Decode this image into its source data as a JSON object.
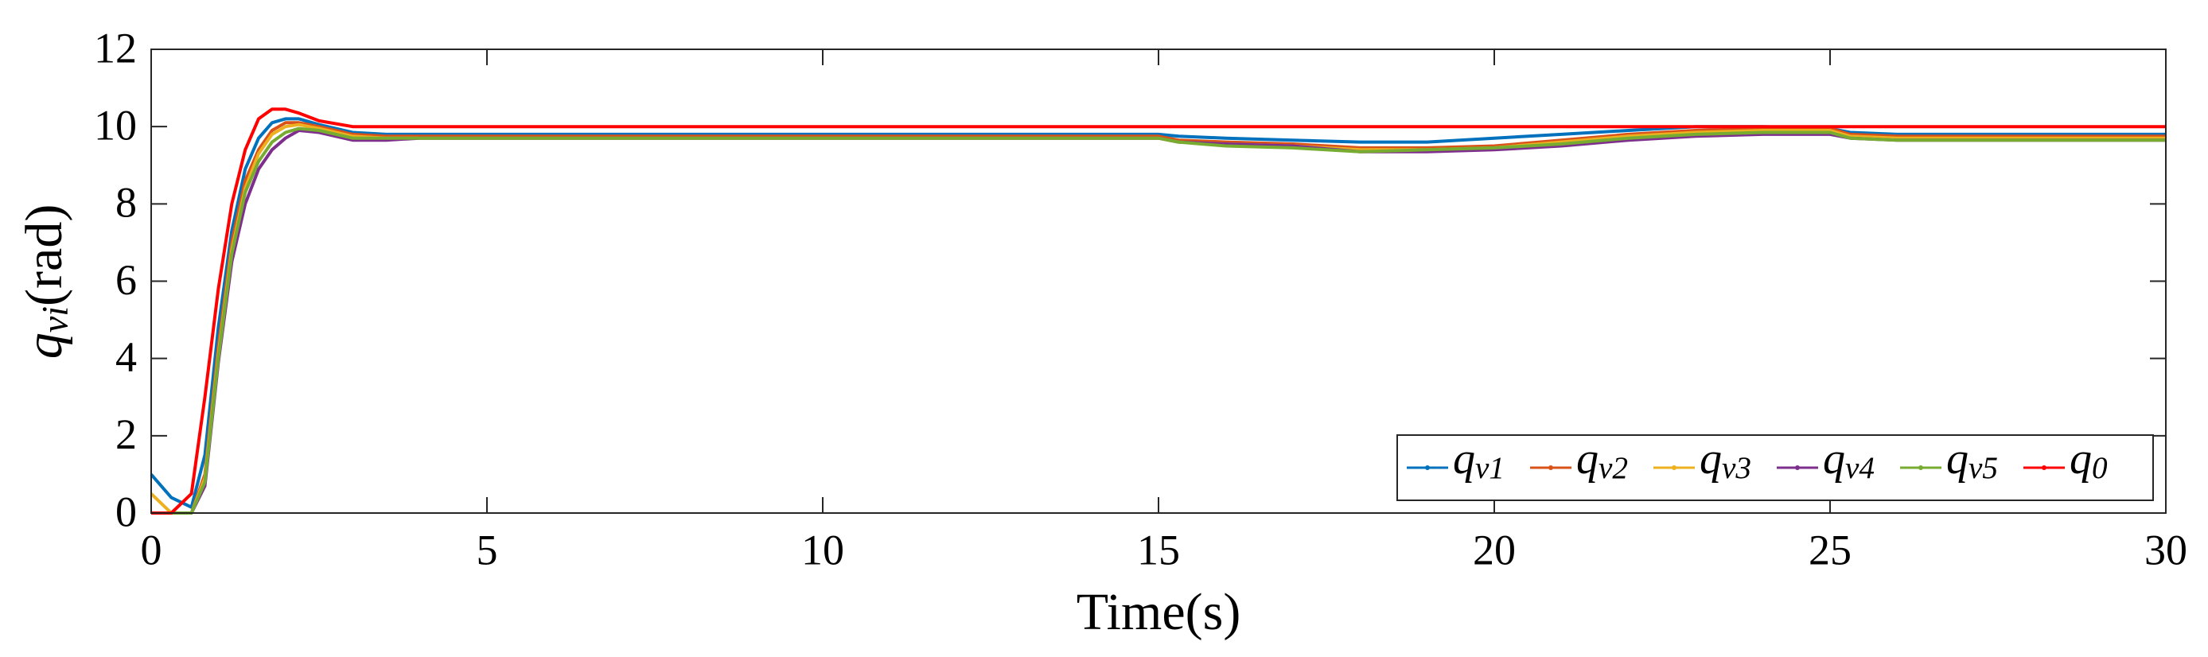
{
  "chart_data": {
    "type": "line",
    "xlabel": "Time(s)",
    "ylabel": "qvi(rad)",
    "x": [
      0,
      0.3,
      0.6,
      0.8,
      1.0,
      1.2,
      1.4,
      1.6,
      1.8,
      2.0,
      2.2,
      2.5,
      3.0,
      3.5,
      4,
      6,
      8,
      10,
      12,
      14,
      15,
      15.3,
      16,
      17,
      18,
      19,
      20,
      21,
      22,
      23,
      24,
      25,
      25.3,
      26,
      28,
      30
    ],
    "series": [
      {
        "name": "qv1",
        "color": "#0072bd",
        "values": [
          1.0,
          0.4,
          0.15,
          1.5,
          4.8,
          7.3,
          8.9,
          9.7,
          10.1,
          10.2,
          10.2,
          10.05,
          9.85,
          9.8,
          9.8,
          9.8,
          9.8,
          9.8,
          9.8,
          9.8,
          9.8,
          9.75,
          9.7,
          9.65,
          9.6,
          9.6,
          9.7,
          9.8,
          9.9,
          10.0,
          10.0,
          9.95,
          9.85,
          9.8,
          9.8,
          9.8
        ]
      },
      {
        "name": "qv2",
        "color": "#d95319",
        "values": [
          0,
          0,
          0,
          1.0,
          4.3,
          7.0,
          8.6,
          9.4,
          9.9,
          10.1,
          10.1,
          10.0,
          9.8,
          9.75,
          9.75,
          9.75,
          9.75,
          9.75,
          9.75,
          9.75,
          9.75,
          9.65,
          9.6,
          9.55,
          9.45,
          9.45,
          9.5,
          9.65,
          9.8,
          9.9,
          9.95,
          9.95,
          9.8,
          9.75,
          9.75,
          9.75
        ]
      },
      {
        "name": "qv3",
        "color": "#edb120",
        "values": [
          0.5,
          0,
          0,
          0.9,
          4.1,
          6.8,
          8.4,
          9.3,
          9.8,
          10.0,
          10.05,
          9.95,
          9.75,
          9.7,
          9.7,
          9.7,
          9.7,
          9.7,
          9.7,
          9.7,
          9.7,
          9.6,
          9.55,
          9.5,
          9.4,
          9.4,
          9.45,
          9.6,
          9.75,
          9.85,
          9.9,
          9.9,
          9.75,
          9.7,
          9.7,
          9.7
        ]
      },
      {
        "name": "qv4",
        "color": "#7e2f8e",
        "values": [
          0,
          0,
          0,
          0.7,
          3.9,
          6.5,
          8.0,
          8.9,
          9.4,
          9.7,
          9.9,
          9.85,
          9.65,
          9.65,
          9.7,
          9.7,
          9.7,
          9.7,
          9.7,
          9.7,
          9.7,
          9.6,
          9.55,
          9.5,
          9.35,
          9.35,
          9.4,
          9.5,
          9.65,
          9.75,
          9.8,
          9.8,
          9.7,
          9.65,
          9.65,
          9.65
        ]
      },
      {
        "name": "qv5",
        "color": "#77ac30",
        "values": [
          0,
          0,
          0,
          0.8,
          4.0,
          6.7,
          8.3,
          9.1,
          9.6,
          9.85,
          9.95,
          9.9,
          9.7,
          9.7,
          9.7,
          9.7,
          9.7,
          9.7,
          9.7,
          9.7,
          9.7,
          9.6,
          9.5,
          9.45,
          9.35,
          9.4,
          9.45,
          9.55,
          9.7,
          9.8,
          9.85,
          9.85,
          9.7,
          9.65,
          9.65,
          9.65
        ]
      },
      {
        "name": "q0",
        "color": "#ff0000",
        "values": [
          0,
          0,
          0.5,
          3.0,
          5.8,
          8.0,
          9.4,
          10.2,
          10.45,
          10.45,
          10.35,
          10.15,
          10.0,
          10,
          10,
          10,
          10,
          10,
          10,
          10,
          10,
          10,
          10,
          10,
          10,
          10,
          10,
          10,
          10,
          10,
          10,
          10,
          10,
          10,
          10,
          10
        ]
      }
    ],
    "xlim": [
      0,
      30
    ],
    "xticks": [
      0,
      5,
      10,
      15,
      20,
      25,
      30
    ],
    "ylim": [
      0,
      12
    ],
    "yticks": [
      0,
      2,
      4,
      6,
      8,
      10,
      12
    ],
    "legend": "lower right"
  }
}
